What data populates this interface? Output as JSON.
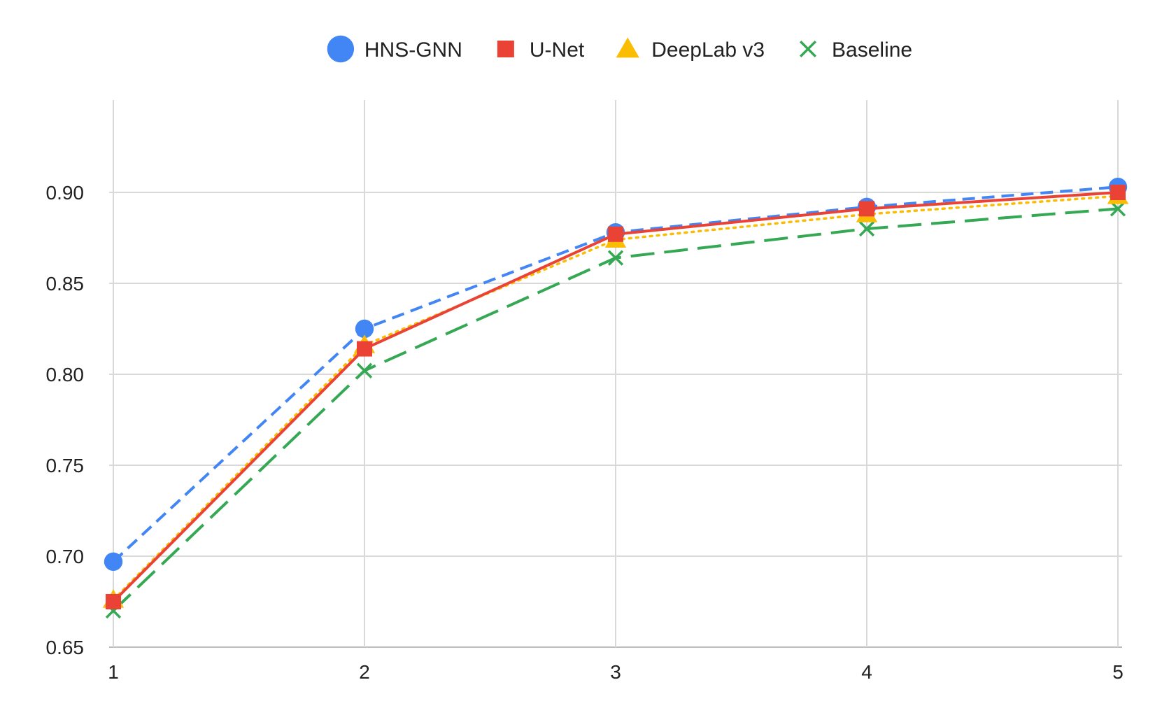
{
  "chart_data": {
    "type": "line",
    "x": [
      1,
      2,
      3,
      4,
      5
    ],
    "xlim": [
      1,
      5
    ],
    "ylim": [
      0.65,
      0.95
    ],
    "y_ticks": [
      0.65,
      0.7,
      0.75,
      0.8,
      0.85,
      0.9
    ],
    "y_tick_labels": [
      "0.65",
      "0.70",
      "0.75",
      "0.80",
      "0.85",
      "0.90"
    ],
    "x_tick_labels": [
      "1",
      "2",
      "3",
      "4",
      "5"
    ],
    "grid": true,
    "legend_position": "top-center",
    "series": [
      {
        "name": "HNS-GNN",
        "values": [
          0.697,
          0.825,
          0.878,
          0.892,
          0.903
        ],
        "color": "#4285F4",
        "marker": "circle",
        "line_style": "dashed"
      },
      {
        "name": "U-Net",
        "values": [
          0.675,
          0.814,
          0.877,
          0.891,
          0.9
        ],
        "color": "#EA4335",
        "marker": "square",
        "line_style": "solid"
      },
      {
        "name": "DeepLab v3",
        "values": [
          0.676,
          0.816,
          0.874,
          0.888,
          0.898
        ],
        "color": "#FBBC04",
        "marker": "triangle",
        "line_style": "dotted"
      },
      {
        "name": "Baseline",
        "values": [
          0.67,
          0.802,
          0.864,
          0.88,
          0.891
        ],
        "color": "#34A853",
        "marker": "x",
        "line_style": "long-dashed"
      }
    ]
  }
}
